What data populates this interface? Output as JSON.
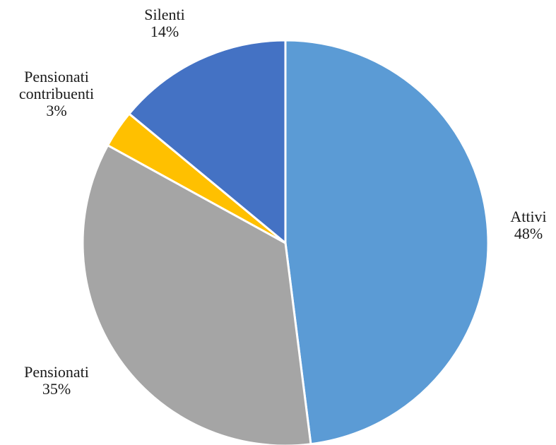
{
  "chart_data": {
    "type": "pie",
    "title": "",
    "slices": [
      {
        "name": "Attivi",
        "value": 48,
        "label": "48%",
        "color": "#5b9bd5"
      },
      {
        "name": "Pensionati",
        "value": 35,
        "label": "35%",
        "color": "#a5a5a5"
      },
      {
        "name": "Pensionati contribuenti",
        "value": 3,
        "label": "3%",
        "color": "#ffc000"
      },
      {
        "name": "Silenti",
        "value": 14,
        "label": "14%",
        "color": "#4472c4"
      }
    ],
    "start": "12 o'clock",
    "direction": "clockwise",
    "legend": "none",
    "data_labels": "outside, category name and percentage"
  }
}
